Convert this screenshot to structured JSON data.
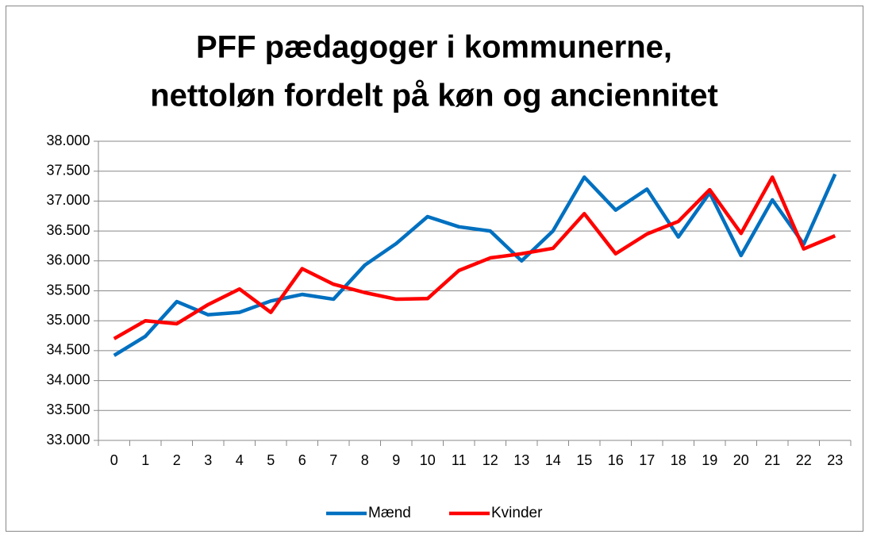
{
  "chart_data": {
    "type": "line",
    "title": [
      "PFF pædagoger i kommunerne,",
      "nettoløn fordelt på køn og anciennitet"
    ],
    "categories": [
      "0",
      "1",
      "2",
      "3",
      "4",
      "5",
      "6",
      "7",
      "8",
      "9",
      "10",
      "11",
      "12",
      "13",
      "14",
      "15",
      "16",
      "17",
      "18",
      "19",
      "20",
      "21",
      "22",
      "23"
    ],
    "series": [
      {
        "name": "Mænd",
        "color": "#0070c0",
        "values": [
          34420,
          34740,
          35320,
          35100,
          35140,
          35330,
          35440,
          35360,
          35930,
          36290,
          36740,
          36570,
          36500,
          36000,
          36500,
          37400,
          36850,
          37200,
          36400,
          37140,
          36090,
          37020,
          36280,
          37450
        ]
      },
      {
        "name": "Kvinder",
        "color": "#ff0000",
        "values": [
          34700,
          35000,
          34950,
          35270,
          35530,
          35140,
          35870,
          35610,
          35470,
          35360,
          35370,
          35840,
          36050,
          36120,
          36210,
          36790,
          36120,
          36450,
          36660,
          37190,
          36460,
          37400,
          36200,
          36420
        ]
      }
    ],
    "ylim": [
      33000,
      38000
    ],
    "yticks": [
      {
        "value": 33000,
        "label": "33.000"
      },
      {
        "value": 33500,
        "label": "33.500"
      },
      {
        "value": 34000,
        "label": "34.000"
      },
      {
        "value": 34500,
        "label": "34.500"
      },
      {
        "value": 35000,
        "label": "35.000"
      },
      {
        "value": 35500,
        "label": "35.500"
      },
      {
        "value": 36000,
        "label": "36.000"
      },
      {
        "value": 36500,
        "label": "36.500"
      },
      {
        "value": 37000,
        "label": "37.000"
      },
      {
        "value": 37500,
        "label": "37.500"
      },
      {
        "value": 38000,
        "label": "38.000"
      }
    ],
    "grid": true,
    "legend": "bottom"
  }
}
